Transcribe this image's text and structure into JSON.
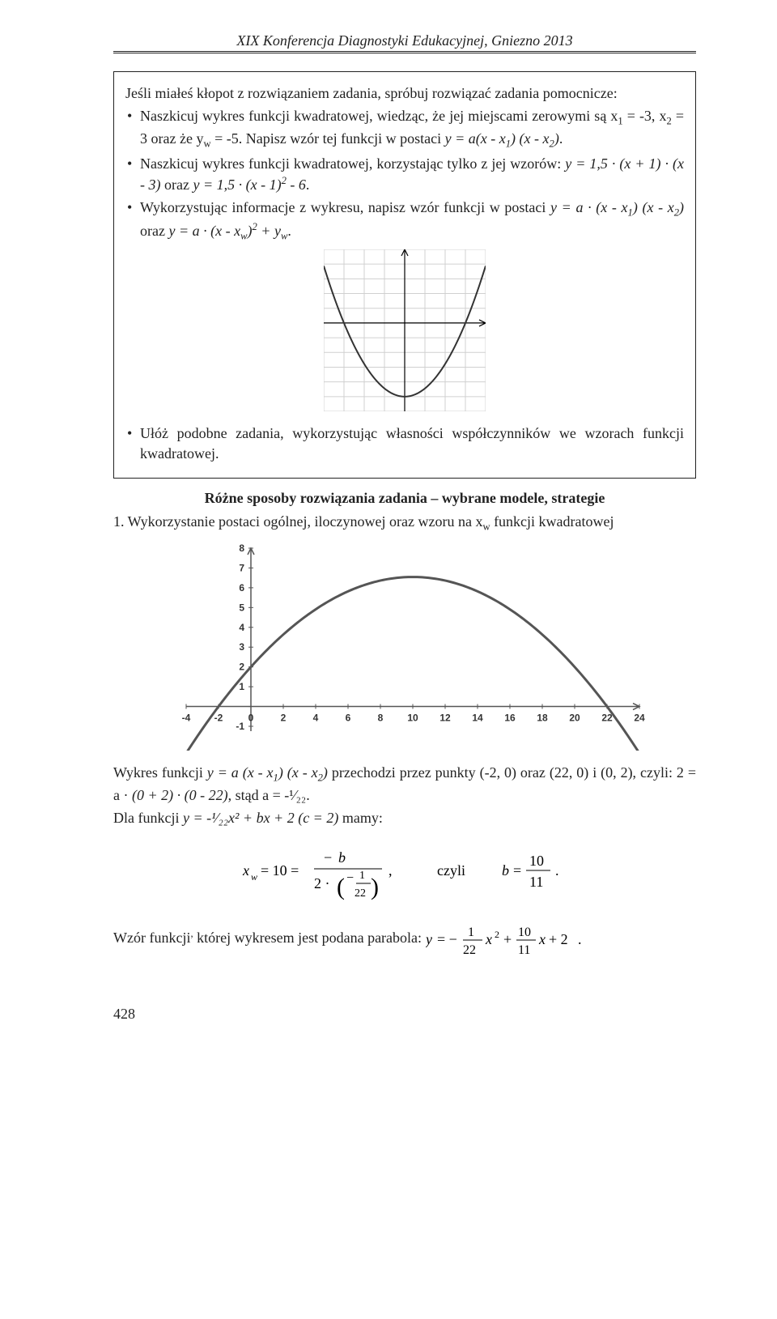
{
  "header": {
    "title": "XIX Konferencja Diagnostyki Edukacyjnej, Gniezno 2013"
  },
  "box": {
    "intro": "Jeśli miałeś kłopot z rozwiązaniem zadania, spróbuj rozwiązać zadania pomocnicze:",
    "bullets": {
      "b1": "Naszkicuj wykres funkcji kwadratowej, wiedząc, że jej miejscami zerowymi są x₁ = -3, x₂ = 3 oraz że yᵥᵥ = -5. Napisz wzór tej funkcji w postaci y = a(x - x₁) (x - x₂).",
      "b2": "Naszkicuj wykres funkcji kwadratowej, korzystając tylko z jej wzorów: y = 1,5 · (x + 1) · (x - 3) oraz y = 1,5 · (x - 1)² - 6.",
      "b3": "Wykorzystując informacje z wykresu, napisz wzór funkcji w postaci y = a · (x - x₁) (x - x₂) oraz y = a · (x - xᵥᵥ)² + yᵥᵥ.",
      "b4": "Ułóż podobne zadania, wykorzystując własności współczynników we wzorach funkcji kwadratowej."
    },
    "chart1": {
      "type": "line",
      "background_color": "#ffffff",
      "grid_color": "#d0d0d0",
      "axis_color": "#000000",
      "curve_color": "#333333",
      "curve_width": 2,
      "xlim": [
        -4,
        4
      ],
      "ylim": [
        -6,
        5
      ],
      "xtick_step": 1,
      "ytick_step": 1,
      "roots": [
        -3,
        3
      ],
      "vertex": [
        0,
        -5
      ],
      "a": 0.555,
      "arrow": true
    }
  },
  "section": {
    "heading": "Różne sposoby rozwiązania zadania – wybrane modele, strategie",
    "item1": "1. Wykorzystanie postaci ogólnej, iloczynowej oraz wzoru na xᵥᵥ funkcji kwadratowej"
  },
  "chart2": {
    "type": "line",
    "background_color": "#ffffff",
    "grid_color": "#ffffff",
    "axis_color": "#555555",
    "curve_color": "#555555",
    "curve_width": 3,
    "xlim": [
      -4,
      24
    ],
    "ylim": [
      -1,
      8
    ],
    "xticks": [
      -4,
      -2,
      0,
      2,
      4,
      6,
      8,
      10,
      12,
      14,
      16,
      18,
      20,
      22,
      24
    ],
    "yticks": [
      -1,
      0,
      1,
      2,
      3,
      4,
      5,
      6,
      7,
      8
    ],
    "label_fontsize": 12,
    "roots": [
      -2,
      22
    ],
    "vertex": [
      10,
      6.545
    ],
    "a": -0.04545
  },
  "solution": {
    "para1_a": "Wykres funkcji ",
    "para1_b": "y = a (x - x₁) (x - x₂)",
    "para1_c": " przechodzi przez punkty (-2, 0) oraz (22, 0) i (0, 2), czyli: 2 = a · ",
    "para1_d": "(0 + 2) · (0 - 22)",
    "para1_e": ", stąd a = -¹⁄₂₂.",
    "para2_a": "Dla funkcji ",
    "para2_b": "y = -¹⁄₂₂x² + bx + 2 (c = 2)",
    "para2_c": " mamy:",
    "formula1": "xᵥᵥ = 10 = −b / (2·(−1/22)) ,    czyli    b = 10/11 .",
    "para3": "Wzór funkcji, której wykresem jest podana parabola: ",
    "formula2": "y = −(1/22)x² + (10/11)x + 2 ."
  },
  "page_number": "428"
}
